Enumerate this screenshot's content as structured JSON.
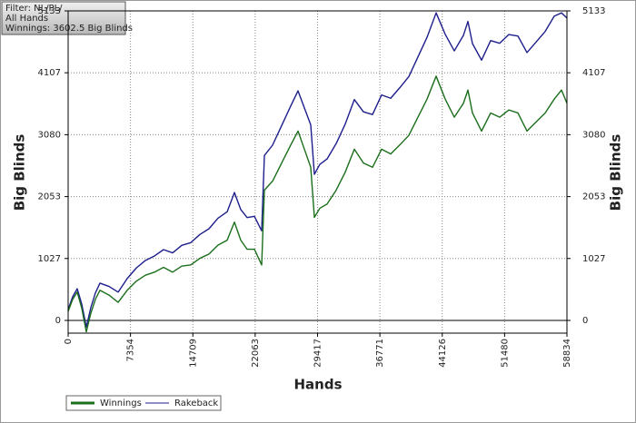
{
  "chart_data": {
    "type": "line",
    "annotation": [
      "Filter: NL/PL/",
      "All Hands",
      "Winnings: 3602.5 Big Blinds"
    ],
    "xlabel": "Hands",
    "ylabel": "Big Blinds",
    "y2label": "Big Blinds",
    "x": [
      0,
      536,
      1072,
      1608,
      2143,
      2679,
      3215,
      3751,
      4823,
      5894,
      6966,
      8038,
      9109,
      10181,
      11253,
      12325,
      13396,
      14468,
      15540,
      16611,
      17683,
      18755,
      19612,
      20362,
      21112,
      21970,
      22827,
      23148,
      24113,
      25185,
      26257,
      27114,
      27864,
      28614,
      29043,
      29686,
      30543,
      31615,
      32687,
      33758,
      34830,
      35902,
      36974,
      38045,
      39117,
      40189,
      41260,
      42332,
      43404,
      44476,
      45547,
      46619,
      47155,
      47691,
      48762,
      49834,
      50906,
      51977,
      53049,
      54121,
      55193,
      56264,
      57336,
      58193,
      58834
    ],
    "series": [
      {
        "name": "Winnings",
        "color": "#1b6e1b",
        "values": [
          150,
          350,
          470,
          200,
          -190,
          120,
          350,
          500,
          420,
          300,
          500,
          650,
          750,
          800,
          880,
          800,
          900,
          920,
          1030,
          1100,
          1250,
          1330,
          1630,
          1330,
          1180,
          1180,
          920,
          2160,
          2310,
          2610,
          2910,
          3140,
          2840,
          2540,
          1710,
          1860,
          1930,
          2160,
          2460,
          2840,
          2610,
          2540,
          2840,
          2760,
          2910,
          3070,
          3370,
          3670,
          4050,
          3670,
          3370,
          3600,
          3820,
          3440,
          3140,
          3440,
          3370,
          3490,
          3440,
          3140,
          3290,
          3440,
          3670,
          3820,
          3602.5
        ]
      },
      {
        "name": "Rakeback",
        "color": "#1e1e8c",
        "values": [
          180,
          393,
          525,
          268,
          -110,
          213,
          456,
          618,
          563,
          469,
          694,
          869,
          994,
          1069,
          1174,
          1120,
          1245,
          1290,
          1425,
          1520,
          1696,
          1801,
          2121,
          1839,
          1706,
          1726,
          1486,
          2734,
          2907,
          3232,
          3557,
          3807,
          3525,
          3242,
          2423,
          2588,
          2678,
          2933,
          3258,
          3663,
          3459,
          3414,
          3739,
          3684,
          3859,
          4044,
          4370,
          4695,
          5100,
          4745,
          4470,
          4726,
          4958,
          4591,
          4316,
          4641,
          4596,
          4741,
          4717,
          4442,
          4617,
          4792,
          5047,
          5100,
          5015
        ]
      }
    ],
    "xlim": [
      0,
      58834
    ],
    "xticks": [
      0,
      7354,
      14709,
      22063,
      29417,
      36771,
      44126,
      51480,
      58834
    ],
    "ylim": [
      -211,
      5133
    ],
    "yticks": [
      0,
      1027,
      2053,
      3080,
      4107,
      5133
    ],
    "y2lim": [
      -211,
      5133
    ],
    "y2ticks": [
      0,
      1027,
      2053,
      3080,
      4107,
      5133
    ],
    "grid": true
  }
}
